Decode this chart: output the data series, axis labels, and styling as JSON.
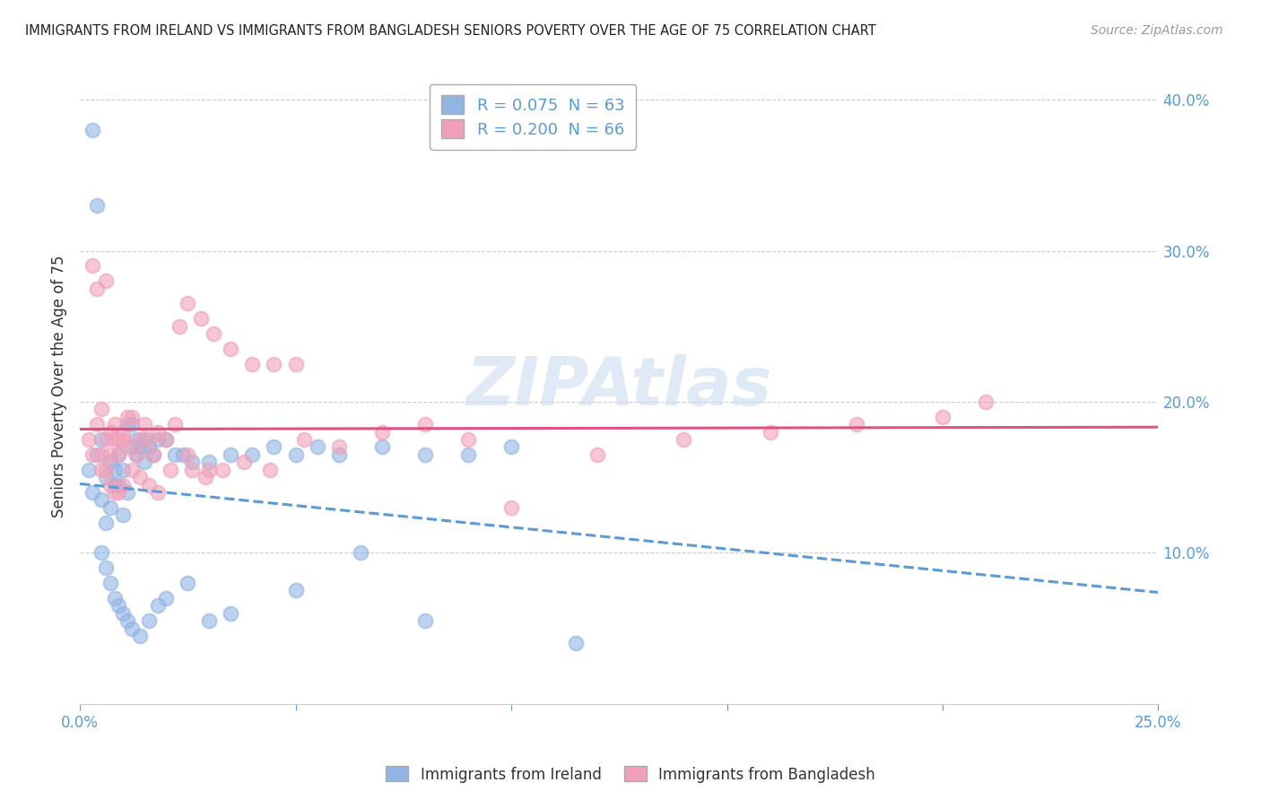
{
  "title": "IMMIGRANTS FROM IRELAND VS IMMIGRANTS FROM BANGLADESH SENIORS POVERTY OVER THE AGE OF 75 CORRELATION CHART",
  "source": "Source: ZipAtlas.com",
  "ylabel": "Seniors Poverty Over the Age of 75",
  "xlim": [
    0.0,
    0.25
  ],
  "ylim": [
    0.0,
    0.42
  ],
  "x_tick_positions": [
    0.0,
    0.05,
    0.1,
    0.15,
    0.2,
    0.25
  ],
  "x_tick_labels": [
    "0.0%",
    "",
    "",
    "",
    "",
    "25.0%"
  ],
  "y_ticks": [
    0.1,
    0.2,
    0.3,
    0.4
  ],
  "y_tick_labels": [
    "10.0%",
    "20.0%",
    "30.0%",
    "40.0%"
  ],
  "ireland_label": "Immigrants from Ireland",
  "bangladesh_label": "Immigrants from Bangladesh",
  "ireland_R": "0.075",
  "ireland_N": "63",
  "bangladesh_R": "0.200",
  "bangladesh_N": "66",
  "ireland_color": "#92b4e3",
  "bangladesh_color": "#f0a0b8",
  "ireland_line_color": "#5b9bd5",
  "bangladesh_line_color": "#e05080",
  "ireland_x": [
    0.002,
    0.003,
    0.004,
    0.005,
    0.005,
    0.006,
    0.006,
    0.007,
    0.007,
    0.008,
    0.008,
    0.009,
    0.009,
    0.01,
    0.01,
    0.011,
    0.011,
    0.012,
    0.012,
    0.013,
    0.013,
    0.014,
    0.015,
    0.015,
    0.016,
    0.017,
    0.018,
    0.02,
    0.022,
    0.024,
    0.026,
    0.03,
    0.035,
    0.04,
    0.045,
    0.05,
    0.055,
    0.06,
    0.07,
    0.08,
    0.09,
    0.1,
    0.003,
    0.004,
    0.005,
    0.006,
    0.007,
    0.008,
    0.009,
    0.01,
    0.011,
    0.012,
    0.014,
    0.016,
    0.018,
    0.02,
    0.025,
    0.03,
    0.035,
    0.05,
    0.065,
    0.08,
    0.115
  ],
  "ireland_y": [
    0.155,
    0.14,
    0.165,
    0.175,
    0.135,
    0.15,
    0.12,
    0.16,
    0.13,
    0.145,
    0.155,
    0.165,
    0.145,
    0.155,
    0.125,
    0.14,
    0.185,
    0.17,
    0.185,
    0.175,
    0.165,
    0.17,
    0.175,
    0.16,
    0.17,
    0.165,
    0.175,
    0.175,
    0.165,
    0.165,
    0.16,
    0.16,
    0.165,
    0.165,
    0.17,
    0.165,
    0.17,
    0.165,
    0.17,
    0.165,
    0.165,
    0.17,
    0.38,
    0.33,
    0.1,
    0.09,
    0.08,
    0.07,
    0.065,
    0.06,
    0.055,
    0.05,
    0.045,
    0.055,
    0.065,
    0.07,
    0.08,
    0.055,
    0.06,
    0.075,
    0.1,
    0.055,
    0.04
  ],
  "bangladesh_x": [
    0.002,
    0.003,
    0.004,
    0.005,
    0.005,
    0.006,
    0.006,
    0.007,
    0.007,
    0.008,
    0.008,
    0.009,
    0.009,
    0.01,
    0.01,
    0.011,
    0.011,
    0.012,
    0.013,
    0.014,
    0.015,
    0.016,
    0.017,
    0.018,
    0.02,
    0.022,
    0.025,
    0.028,
    0.031,
    0.035,
    0.04,
    0.045,
    0.05,
    0.06,
    0.07,
    0.08,
    0.003,
    0.004,
    0.005,
    0.006,
    0.007,
    0.008,
    0.009,
    0.01,
    0.012,
    0.014,
    0.016,
    0.018,
    0.021,
    0.025,
    0.03,
    0.12,
    0.14,
    0.16,
    0.18,
    0.2,
    0.21,
    0.023,
    0.026,
    0.029,
    0.033,
    0.038,
    0.044,
    0.052,
    0.09,
    0.1
  ],
  "bangladesh_y": [
    0.175,
    0.165,
    0.185,
    0.165,
    0.195,
    0.175,
    0.155,
    0.18,
    0.165,
    0.175,
    0.185,
    0.175,
    0.165,
    0.175,
    0.18,
    0.19,
    0.17,
    0.19,
    0.165,
    0.175,
    0.185,
    0.175,
    0.165,
    0.18,
    0.175,
    0.185,
    0.265,
    0.255,
    0.245,
    0.235,
    0.225,
    0.225,
    0.225,
    0.17,
    0.18,
    0.185,
    0.29,
    0.275,
    0.155,
    0.28,
    0.145,
    0.14,
    0.14,
    0.145,
    0.155,
    0.15,
    0.145,
    0.14,
    0.155,
    0.165,
    0.155,
    0.165,
    0.175,
    0.18,
    0.185,
    0.19,
    0.2,
    0.25,
    0.155,
    0.15,
    0.155,
    0.16,
    0.155,
    0.175,
    0.175,
    0.13
  ]
}
